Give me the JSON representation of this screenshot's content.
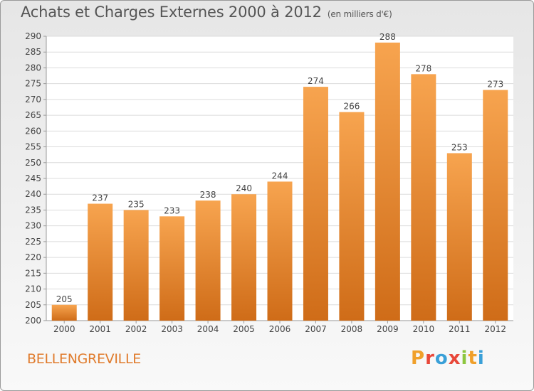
{
  "header": {
    "title": "Achats et Charges Externes 2000 à 2012",
    "unit": "(en milliers d'€)"
  },
  "footer": {
    "city": "BELLENGREVILLE",
    "logo": {
      "letters": [
        "P",
        "r",
        "o",
        "x",
        "i",
        "t",
        "i"
      ],
      "colors": [
        "#f0a02a",
        "#e8483a",
        "#3aa0d8",
        "#e8483a",
        "#8cc63f",
        "#f0a02a",
        "#3aa0d8"
      ]
    }
  },
  "colors": {
    "bar_light": "#f7a44f",
    "bar_dark": "#cf6c18",
    "grid": "#dcdcdc",
    "axis": "#999999",
    "text": "#444444"
  },
  "chart_data": {
    "type": "bar",
    "title": "Achats et Charges Externes 2000 à 2012",
    "categories": [
      "2000",
      "2001",
      "2002",
      "2003",
      "2004",
      "2005",
      "2006",
      "2007",
      "2008",
      "2009",
      "2010",
      "2011",
      "2012"
    ],
    "values": [
      205,
      237,
      235,
      233,
      238,
      240,
      244,
      274,
      266,
      288,
      278,
      253,
      273
    ],
    "ylim": [
      200,
      290
    ],
    "ytick_step": 5,
    "grid": true,
    "data_labels": true
  }
}
